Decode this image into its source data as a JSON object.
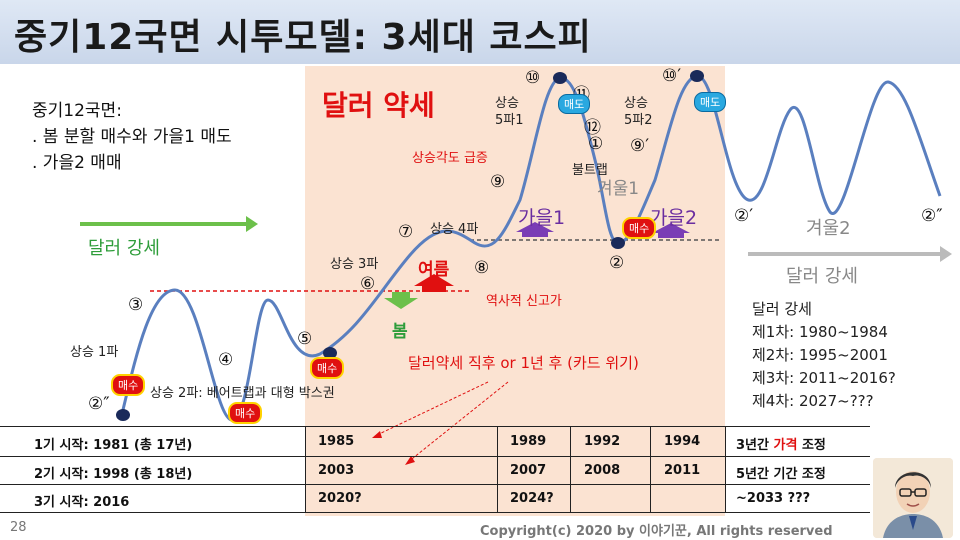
{
  "title": "중기12국면 시투모델: 3세대 코스피",
  "notes": [
    "중기12국면:",
    ". 봄 분할 매수와 가을1 매도",
    ". 가을2 매매"
  ],
  "region_labels": {
    "dollar_weak": "달러 약세",
    "dollar_strong_left": "달러 강세",
    "dollar_strong_right": "달러 강세",
    "winter1": "겨울1",
    "winter2": "겨울2",
    "spring": "봄",
    "summer": "여름",
    "autumn1": "가을1",
    "autumn2": "가을2"
  },
  "wave_labels": {
    "up1": "상승 1파",
    "up2": "상승 2파: 베어트랩과 대형 박스권",
    "up3": "상승 3파",
    "up4": "상승 4파",
    "up5_1": "상승\n5파1",
    "up5_2": "상승\n5파2",
    "steep": "상승각도 급증",
    "bulltrap": "불트랩",
    "historic_high": "역사적 신고가",
    "crisis": "달러약세 직후 or 1년 후 (카드 위기)"
  },
  "markers": {
    "buy": "매수",
    "sell": "매도"
  },
  "phase_numbers": {
    "n2pp_left": "②″",
    "n3": "③",
    "n4": "④",
    "n5": "⑤",
    "n6": "⑥",
    "n7": "⑦",
    "n8": "⑧",
    "n9": "⑨",
    "n10": "⑩",
    "n11": "⑪",
    "n12": "⑫",
    "n1": "①",
    "n2": "②",
    "n9p": "⑨′",
    "n10p": "⑩′",
    "n2p": "②′",
    "n2pp_right": "②″"
  },
  "dollar_strong_list": {
    "heading": "달러 강세",
    "items": [
      "제1차: 1980~1984",
      "제2차: 1995~2001",
      "제3차: 2011~2016?",
      "제4차: 2027~???"
    ]
  },
  "table": {
    "rows": [
      {
        "start": "1기 시작: 1981 (총 17년)",
        "c1": "1985",
        "c2": "1989",
        "c3": "1992",
        "c4": "1994",
        "adjust_pre": "3년간 ",
        "adjust_hl": "가격",
        "adjust_post": " 조정"
      },
      {
        "start": "2기 시작: 1998 (총 18년)",
        "c1": "2003",
        "c2": "2007",
        "c3": "2008",
        "c4": "2011",
        "adjust_pre": "5년간 기간 조정",
        "adjust_hl": "",
        "adjust_post": ""
      },
      {
        "start": "3기 시작: 2016",
        "c1": "2020?",
        "c2": "2024?",
        "c3": "",
        "c4": "",
        "adjust_pre": "~2033 ???",
        "adjust_hl": "",
        "adjust_post": ""
      }
    ]
  },
  "footer": {
    "page": "28",
    "copyright": "Copyright(c) 2020 by 이야기꾼, All rights reserved"
  },
  "colors": {
    "curve": "#5a7fbf",
    "dollar_weak_bg": "#fbe3d2",
    "red": "#e01010",
    "green_arrow": "#6cc04a",
    "purple": "#6a2da0",
    "gray_arrow": "#bbbbbb"
  }
}
